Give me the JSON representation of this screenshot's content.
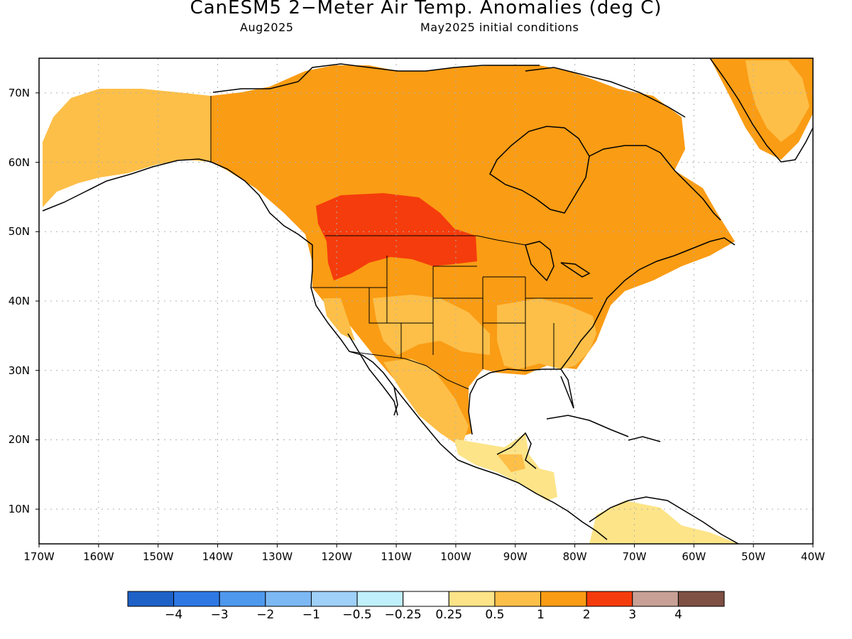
{
  "title": "CanESM5 2−Meter Air Temp. Anomalies (deg C)",
  "subtitle_left": "Aug2025",
  "subtitle_right": "May2025 initial conditions",
  "map": {
    "lon_range": [
      -170,
      -40
    ],
    "lat_range": [
      5,
      75
    ],
    "grid": true
  },
  "lat_ticks": [
    "70N",
    "60N",
    "50N",
    "40N",
    "30N",
    "20N",
    "10N"
  ],
  "lon_ticks": [
    "170W",
    "160W",
    "150W",
    "140W",
    "130W",
    "120W",
    "110W",
    "100W",
    "90W",
    "80W",
    "70W",
    "60W",
    "50W",
    "40W"
  ],
  "colorbar": {
    "labels": [
      "−4",
      "−3",
      "−2",
      "−1",
      "−0.5",
      "−0.25",
      "0.25",
      "0.5",
      "1",
      "2",
      "3",
      "4"
    ],
    "colors": [
      "#1e62c8",
      "#2e78e4",
      "#4e98ee",
      "#7cb8f4",
      "#9fd0f8",
      "#bff0fc",
      "#ffffff",
      "#fde488",
      "#fdbf48",
      "#fa9c14",
      "#f53c0c",
      "#c8a096",
      "#7f5044"
    ]
  },
  "anomaly_colors": {
    "c025": "#fde488",
    "c05": "#fdbf48",
    "c1": "#fa9c14",
    "c2": "#f53c0c"
  }
}
